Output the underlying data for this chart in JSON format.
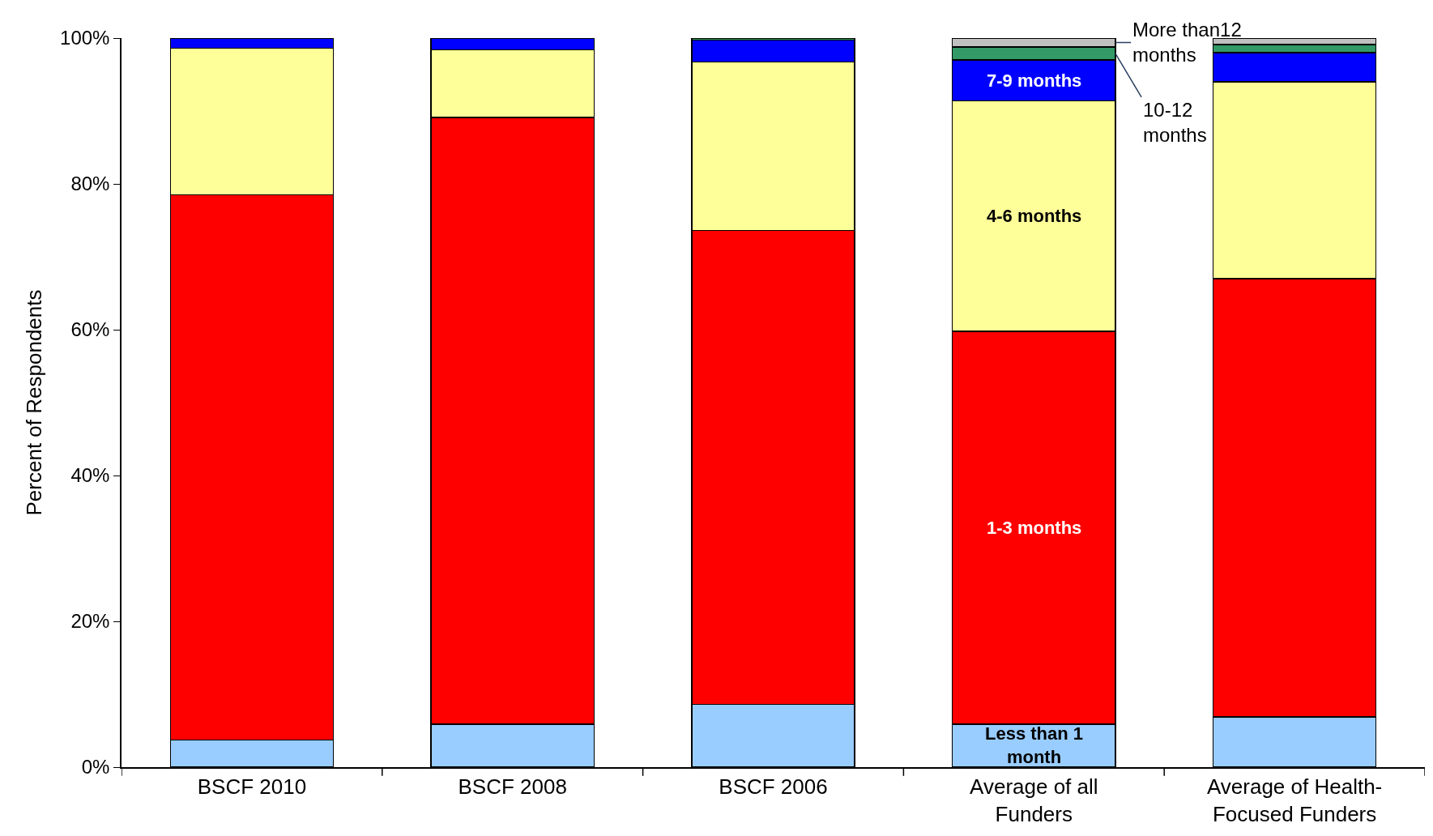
{
  "chart_data": {
    "type": "bar",
    "stacked": true,
    "ylabel": "Percent of Respondents",
    "categories": [
      "BSCF 2010",
      "BSCF 2008",
      "BSCF 2006",
      "Average of all Funders",
      "Average of Health-Focused Funders"
    ],
    "series": [
      {
        "name": "Less than 1 month",
        "color": "#99ccff",
        "values": [
          3.7,
          5.9,
          8.6,
          5.9,
          6.9
        ]
      },
      {
        "name": "1-3 months",
        "color": "#ff0000",
        "values": [
          74.8,
          83.2,
          65.0,
          53.9,
          60.1
        ]
      },
      {
        "name": "4-6 months",
        "color": "#ffff99",
        "values": [
          20.1,
          9.3,
          23.1,
          31.6,
          27.0
        ]
      },
      {
        "name": "7-9 months",
        "color": "#0000ff",
        "values": [
          1.4,
          1.6,
          3.0,
          5.6,
          4.0
        ]
      },
      {
        "name": "10-12 months",
        "color": "#339966",
        "values": [
          null,
          null,
          0.3,
          1.8,
          1.1
        ]
      },
      {
        "name": "More than12 months",
        "color": "#c0c0c0",
        "values": [
          null,
          null,
          null,
          1.2,
          0.9
        ]
      }
    ],
    "ylim": [
      0,
      100
    ],
    "yticks": [
      {
        "value": 0,
        "label": "0%"
      },
      {
        "value": 20,
        "label": "20%"
      },
      {
        "value": 40,
        "label": "40%"
      },
      {
        "value": 60,
        "label": "60%"
      },
      {
        "value": 80,
        "label": "80%"
      },
      {
        "value": 100,
        "label": "100%"
      }
    ],
    "legend": false
  }
}
